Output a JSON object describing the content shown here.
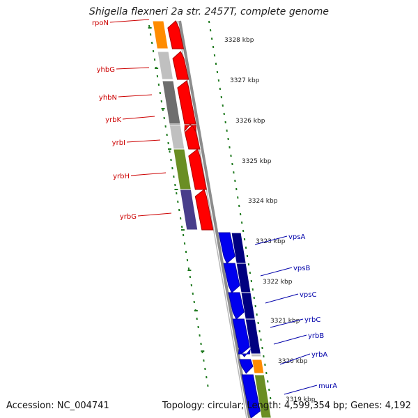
{
  "title": "Shigella flexneri 2a str. 2457T, complete genome",
  "footer": {
    "accession": "Accession: NC_004741",
    "summary": "Topology: circular; Length: 4,599,354 bp; Genes: 4,192"
  },
  "colors": {
    "ruler_ticks": "#1f7a1f",
    "backbone": "#8c8c8c",
    "reverse_label": "#cc0000",
    "forward_label": "#0000aa",
    "reverse_arrow": "#ff0000",
    "forward_arrow": "#0000ee",
    "forward_arrow_dark": "#00006e"
  },
  "scale_labels": [
    "3328 kbp",
    "3327 kbp",
    "3326 kbp",
    "3325 kbp",
    "3324 kbp",
    "3323 kbp",
    "3322 kbp",
    "3321 kbp",
    "3320 kbp",
    "3319 kbp"
  ],
  "genes_reverse": [
    {
      "name": "rpoN",
      "color": "#ff8c00"
    },
    {
      "name": "yhbG",
      "color": "#c0c0c0"
    },
    {
      "name": "yhbN",
      "color": "#6e6e6e"
    },
    {
      "name": "yrbK",
      "color": "#6e6e6e"
    },
    {
      "name": "yrbI",
      "color": "#c0c0c0"
    },
    {
      "name": "yrbH",
      "color": "#6a8e23"
    },
    {
      "name": "yrbG",
      "color": "#483d8b"
    }
  ],
  "genes_forward": [
    {
      "name": "vpsA",
      "color": "#000080"
    },
    {
      "name": "vpsB",
      "color": "#000080"
    },
    {
      "name": "vpsC",
      "color": "#000080"
    },
    {
      "name": "yrbC",
      "color": "#000080"
    },
    {
      "name": "yrbB",
      "color": "#c0c0c0"
    },
    {
      "name": "yrbA",
      "color": "#ff8c00"
    },
    {
      "name": "murA",
      "color": "#6a8e23"
    }
  ]
}
